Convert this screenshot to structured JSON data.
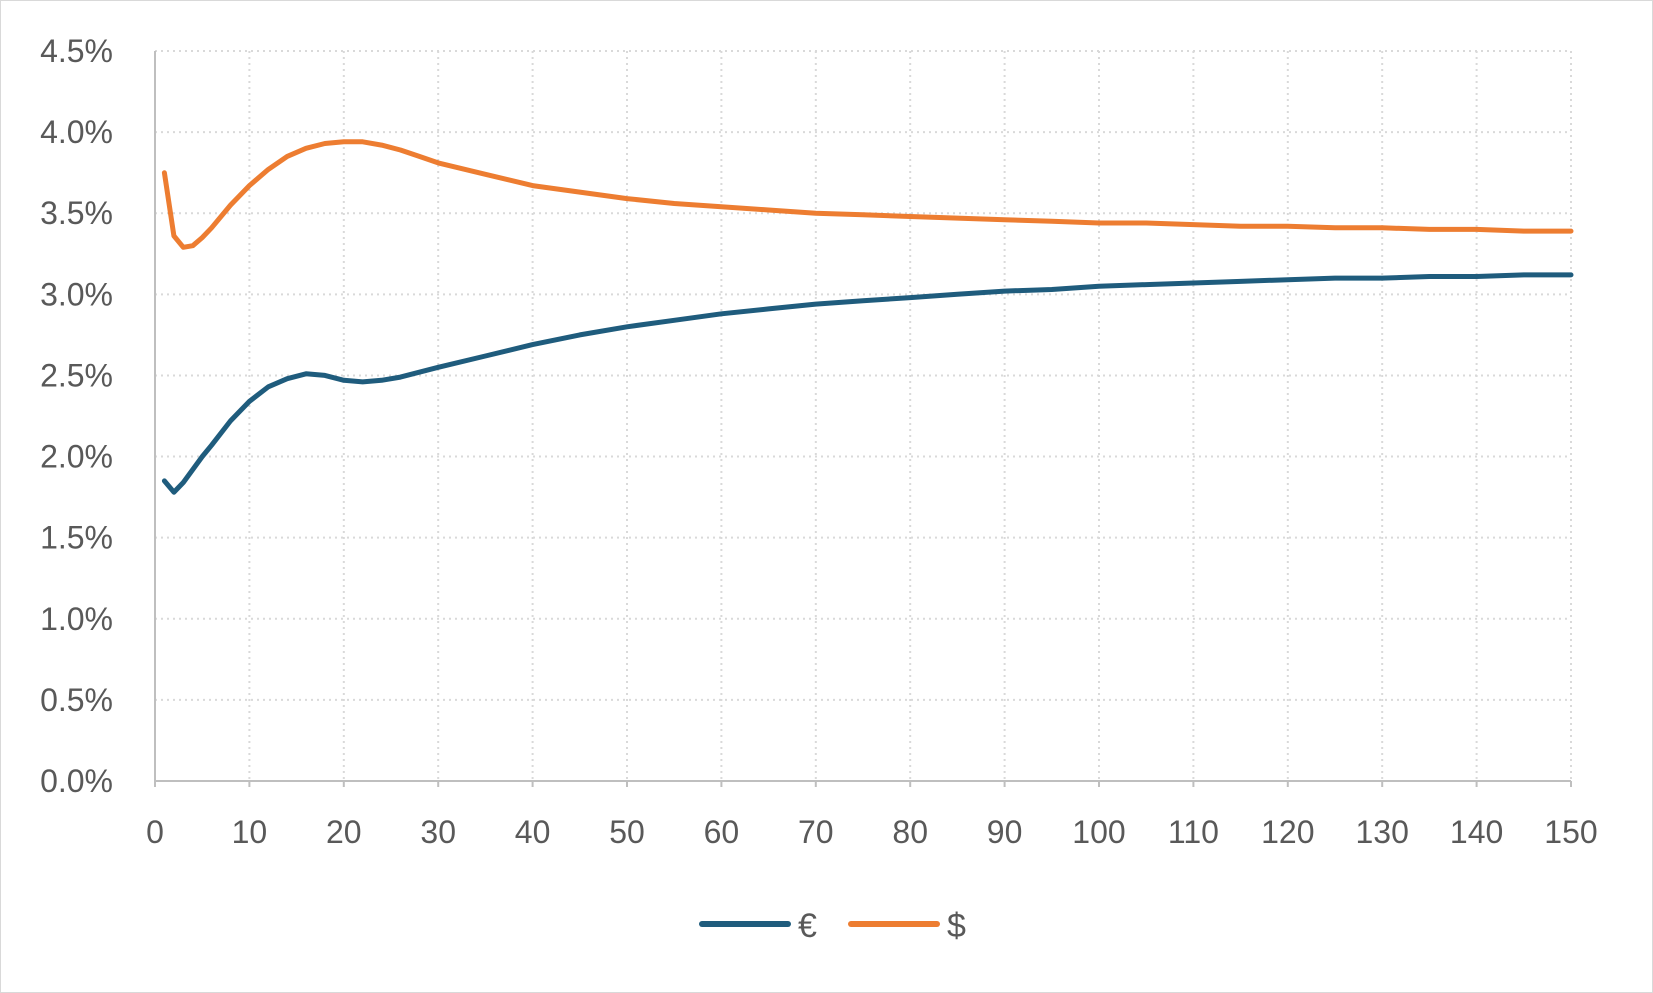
{
  "chart_data": {
    "type": "line",
    "title": "",
    "xlabel": "",
    "ylabel": "",
    "xlim": [
      0,
      150
    ],
    "ylim": [
      0,
      0.045
    ],
    "x_ticks": [
      0,
      10,
      20,
      30,
      40,
      50,
      60,
      70,
      80,
      90,
      100,
      110,
      120,
      130,
      140,
      150
    ],
    "y_ticks": [
      0,
      0.005,
      0.01,
      0.015,
      0.02,
      0.025,
      0.03,
      0.035,
      0.04,
      0.045
    ],
    "x_tick_labels": [
      "0",
      "10",
      "20",
      "30",
      "40",
      "50",
      "60",
      "70",
      "80",
      "90",
      "100",
      "110",
      "120",
      "130",
      "140",
      "150"
    ],
    "y_tick_labels": [
      "0.0%",
      "0.5%",
      "1.0%",
      "1.5%",
      "2.0%",
      "2.5%",
      "3.0%",
      "3.5%",
      "4.0%",
      "4.5%"
    ],
    "grid": true,
    "legend_position": "bottom",
    "series": [
      {
        "name": "€",
        "color": "#1f5c7d",
        "points": [
          [
            1,
            1.85
          ],
          [
            2,
            1.78
          ],
          [
            3,
            1.84
          ],
          [
            4,
            1.92
          ],
          [
            5,
            2.0
          ],
          [
            6,
            2.07
          ],
          [
            8,
            2.22
          ],
          [
            10,
            2.34
          ],
          [
            12,
            2.43
          ],
          [
            14,
            2.48
          ],
          [
            16,
            2.51
          ],
          [
            18,
            2.5
          ],
          [
            20,
            2.47
          ],
          [
            22,
            2.46
          ],
          [
            24,
            2.47
          ],
          [
            26,
            2.49
          ],
          [
            28,
            2.52
          ],
          [
            30,
            2.55
          ],
          [
            35,
            2.62
          ],
          [
            40,
            2.69
          ],
          [
            45,
            2.75
          ],
          [
            50,
            2.8
          ],
          [
            55,
            2.84
          ],
          [
            60,
            2.88
          ],
          [
            65,
            2.91
          ],
          [
            70,
            2.94
          ],
          [
            75,
            2.96
          ],
          [
            80,
            2.98
          ],
          [
            85,
            3.0
          ],
          [
            90,
            3.02
          ],
          [
            95,
            3.03
          ],
          [
            100,
            3.05
          ],
          [
            105,
            3.06
          ],
          [
            110,
            3.07
          ],
          [
            115,
            3.08
          ],
          [
            120,
            3.09
          ],
          [
            125,
            3.1
          ],
          [
            130,
            3.1
          ],
          [
            135,
            3.11
          ],
          [
            140,
            3.11
          ],
          [
            145,
            3.12
          ],
          [
            150,
            3.12
          ]
        ]
      },
      {
        "name": "$",
        "color": "#ed7d31",
        "points": [
          [
            1,
            3.75
          ],
          [
            2,
            3.36
          ],
          [
            3,
            3.29
          ],
          [
            4,
            3.3
          ],
          [
            5,
            3.35
          ],
          [
            6,
            3.41
          ],
          [
            8,
            3.55
          ],
          [
            10,
            3.67
          ],
          [
            12,
            3.77
          ],
          [
            14,
            3.85
          ],
          [
            16,
            3.9
          ],
          [
            18,
            3.93
          ],
          [
            20,
            3.94
          ],
          [
            22,
            3.94
          ],
          [
            24,
            3.92
          ],
          [
            26,
            3.89
          ],
          [
            28,
            3.85
          ],
          [
            30,
            3.81
          ],
          [
            35,
            3.74
          ],
          [
            40,
            3.67
          ],
          [
            45,
            3.63
          ],
          [
            50,
            3.59
          ],
          [
            55,
            3.56
          ],
          [
            60,
            3.54
          ],
          [
            65,
            3.52
          ],
          [
            70,
            3.5
          ],
          [
            75,
            3.49
          ],
          [
            80,
            3.48
          ],
          [
            85,
            3.47
          ],
          [
            90,
            3.46
          ],
          [
            95,
            3.45
          ],
          [
            100,
            3.44
          ],
          [
            105,
            3.44
          ],
          [
            110,
            3.43
          ],
          [
            115,
            3.42
          ],
          [
            120,
            3.42
          ],
          [
            125,
            3.41
          ],
          [
            130,
            3.41
          ],
          [
            135,
            3.4
          ],
          [
            140,
            3.4
          ],
          [
            145,
            3.39
          ],
          [
            150,
            3.39
          ]
        ]
      }
    ]
  }
}
